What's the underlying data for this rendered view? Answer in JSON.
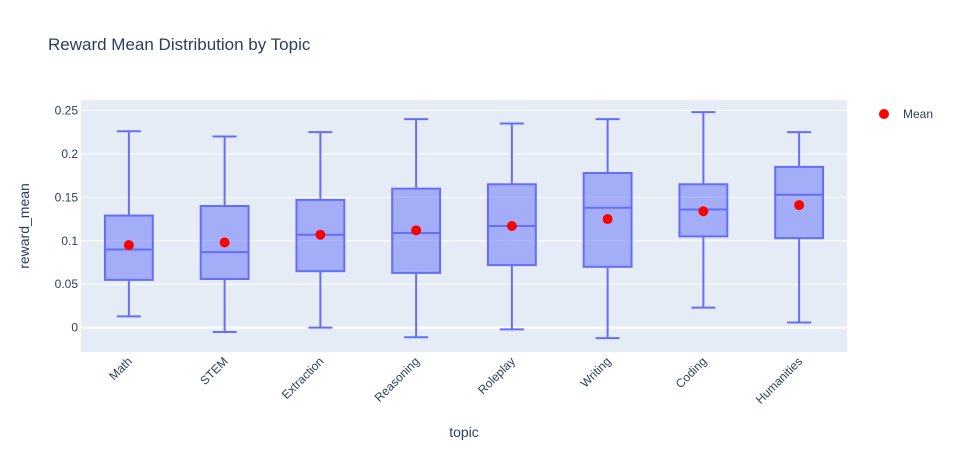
{
  "chart_data": {
    "type": "box",
    "title": "Reward Mean Distribution by Topic",
    "xlabel": "topic",
    "ylabel": "reward_mean",
    "ylim": [
      -0.028,
      0.262
    ],
    "yticks": [
      0,
      0.05,
      0.1,
      0.15,
      0.2,
      0.25
    ],
    "ytick_labels": [
      "0",
      "0.05",
      "0.1",
      "0.15",
      "0.2",
      "0.25"
    ],
    "grid": true,
    "legend_position": "top-right",
    "categories": [
      "Math",
      "STEM",
      "Extraction",
      "Reasoning",
      "Roleplay",
      "Writing",
      "Coding",
      "Humanities"
    ],
    "boxes": [
      {
        "category": "Math",
        "min": 0.013,
        "q1": 0.055,
        "median": 0.09,
        "q3": 0.129,
        "max": 0.226
      },
      {
        "category": "STEM",
        "min": -0.005,
        "q1": 0.056,
        "median": 0.087,
        "q3": 0.14,
        "max": 0.22
      },
      {
        "category": "Extraction",
        "min": 0.0,
        "q1": 0.065,
        "median": 0.107,
        "q3": 0.147,
        "max": 0.225
      },
      {
        "category": "Reasoning",
        "min": -0.011,
        "q1": 0.063,
        "median": 0.109,
        "q3": 0.16,
        "max": 0.24
      },
      {
        "category": "Roleplay",
        "min": -0.002,
        "q1": 0.072,
        "median": 0.117,
        "q3": 0.165,
        "max": 0.235
      },
      {
        "category": "Writing",
        "min": -0.012,
        "q1": 0.07,
        "median": 0.138,
        "q3": 0.178,
        "max": 0.24
      },
      {
        "category": "Coding",
        "min": 0.023,
        "q1": 0.105,
        "median": 0.136,
        "q3": 0.165,
        "max": 0.248
      },
      {
        "category": "Humanities",
        "min": 0.006,
        "q1": 0.103,
        "median": 0.153,
        "q3": 0.185,
        "max": 0.225
      }
    ],
    "series": [
      {
        "name": "Mean",
        "type": "scatter",
        "color": "#ff0000",
        "values": [
          0.095,
          0.098,
          0.107,
          0.112,
          0.117,
          0.125,
          0.134,
          0.141
        ]
      }
    ],
    "colors": {
      "box_line": "#636efa",
      "box_fill": "rgba(99,110,250,0.5)",
      "plot_bg": "#e5ecf6",
      "grid": "#ffffff",
      "text": "#2a3f5f"
    }
  }
}
